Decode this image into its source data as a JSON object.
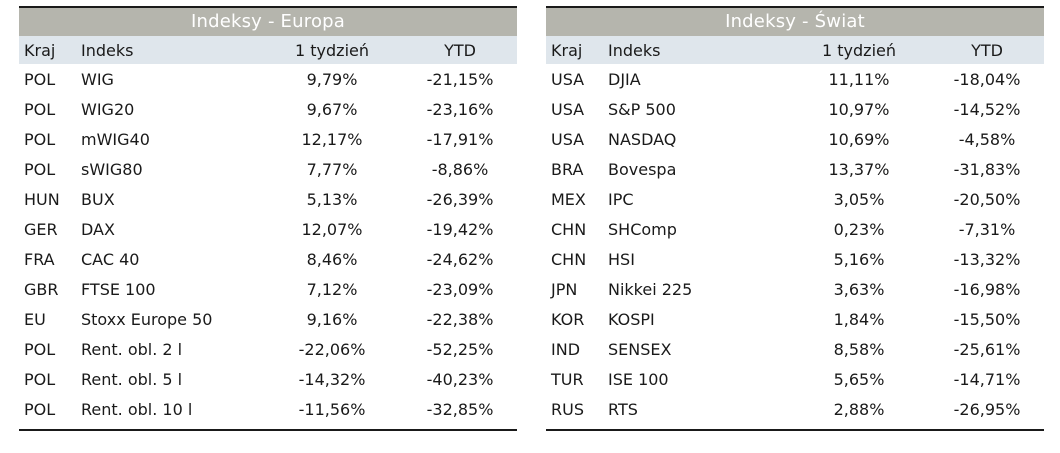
{
  "europe": {
    "title": "Indeksy - Europa",
    "headers": [
      "Kraj",
      "Indeks",
      "1 tydzień",
      "YTD"
    ],
    "rows": [
      [
        "POL",
        "WIG",
        "9,79%",
        "-21,15%"
      ],
      [
        "POL",
        "WIG20",
        "9,67%",
        "-23,16%"
      ],
      [
        "POL",
        "mWIG40",
        "12,17%",
        "-17,91%"
      ],
      [
        "POL",
        "sWIG80",
        "7,77%",
        "-8,86%"
      ],
      [
        "HUN",
        "BUX",
        "5,13%",
        "-26,39%"
      ],
      [
        "GER",
        "DAX",
        "12,07%",
        "-19,42%"
      ],
      [
        "FRA",
        "CAC 40",
        "8,46%",
        "-24,62%"
      ],
      [
        "GBR",
        "FTSE 100",
        "7,12%",
        "-23,09%"
      ],
      [
        "EU",
        "Stoxx Europe 50",
        "9,16%",
        "-22,38%"
      ],
      [
        "POL",
        "Rent. obl. 2 l",
        "-22,06%",
        "-52,25%"
      ],
      [
        "POL",
        "Rent. obl. 5 l",
        "-14,32%",
        "-40,23%"
      ],
      [
        "POL",
        "Rent. obl. 10 l",
        "-11,56%",
        "-32,85%"
      ]
    ]
  },
  "world": {
    "title": "Indeksy - Świat",
    "headers": [
      "Kraj",
      "Indeks",
      "1 tydzień",
      "YTD"
    ],
    "rows": [
      [
        "USA",
        "DJIA",
        "11,11%",
        "-18,04%"
      ],
      [
        "USA",
        "S&P 500",
        "10,97%",
        "-14,52%"
      ],
      [
        "USA",
        "NASDAQ",
        "10,69%",
        "-4,58%"
      ],
      [
        "BRA",
        "Bovespa",
        "13,37%",
        "-31,83%"
      ],
      [
        "MEX",
        "IPC",
        "3,05%",
        "-20,50%"
      ],
      [
        "CHN",
        "SHComp",
        "0,23%",
        "-7,31%"
      ],
      [
        "CHN",
        "HSI",
        "5,16%",
        "-13,32%"
      ],
      [
        "JPN",
        "Nikkei 225",
        "3,63%",
        "-16,98%"
      ],
      [
        "KOR",
        "KOSPI",
        "1,84%",
        "-15,50%"
      ],
      [
        "IND",
        "SENSEX",
        "8,58%",
        "-25,61%"
      ],
      [
        "TUR",
        "ISE 100",
        "5,65%",
        "-14,71%"
      ],
      [
        "RUS",
        "RTS",
        "2,88%",
        "-26,95%"
      ]
    ]
  }
}
